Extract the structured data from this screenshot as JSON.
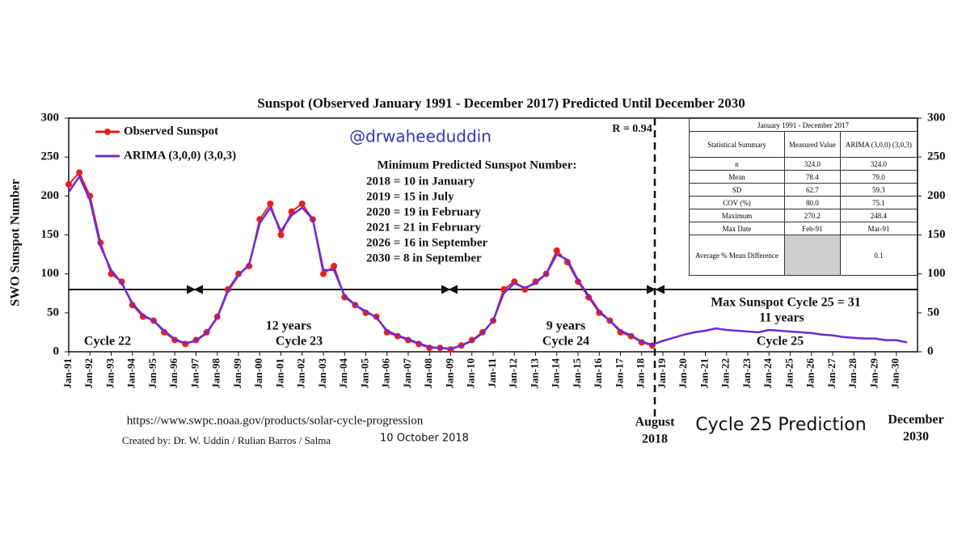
{
  "chart_data": {
    "type": "line",
    "title": "Sunspot (Observed January 1991 - December 2017) Predicted Until December 2030",
    "y_label": "SWO Sunspot Number",
    "legend": "upper left",
    "xlim": [
      1991,
      2031
    ],
    "ylim": [
      0,
      300
    ],
    "yticks": [
      0,
      50,
      100,
      150,
      200,
      250,
      300
    ],
    "xticks": [
      {
        "value": 1991,
        "label": "Jan-91"
      },
      {
        "value": 1992,
        "label": "Jan-92"
      },
      {
        "value": 1993,
        "label": "Jan-93"
      },
      {
        "value": 1994,
        "label": "Jan-94"
      },
      {
        "value": 1995,
        "label": "Jan-95"
      },
      {
        "value": 1996,
        "label": "Jan-96"
      },
      {
        "value": 1997,
        "label": "Jan-97"
      },
      {
        "value": 1998,
        "label": "Jan-98"
      },
      {
        "value": 1999,
        "label": "Jan-99"
      },
      {
        "value": 2000,
        "label": "Jan-00"
      },
      {
        "value": 2001,
        "label": "Jan-01"
      },
      {
        "value": 2002,
        "label": "Jan-02"
      },
      {
        "value": 2003,
        "label": "Jan-03"
      },
      {
        "value": 2004,
        "label": "Jan-04"
      },
      {
        "value": 2005,
        "label": "Jan-05"
      },
      {
        "value": 2006,
        "label": "Jan-06"
      },
      {
        "value": 2007,
        "label": "Jan-07"
      },
      {
        "value": 2008,
        "label": "Jan-08"
      },
      {
        "value": 2009,
        "label": "Jan-09"
      },
      {
        "value": 2010,
        "label": "Jan-10"
      },
      {
        "value": 2011,
        "label": "Jan-11"
      },
      {
        "value": 2012,
        "label": "Jan-12"
      },
      {
        "value": 2013,
        "label": "Jan-13"
      },
      {
        "value": 2014,
        "label": "Jan-14"
      },
      {
        "value": 2015,
        "label": "Jan-15"
      },
      {
        "value": 2016,
        "label": "Jan-16"
      },
      {
        "value": 2017,
        "label": "Jan-17"
      },
      {
        "value": 2018,
        "label": "Jan-18"
      },
      {
        "value": 2019,
        "label": "Jan-19"
      },
      {
        "value": 2020,
        "label": "Jan-20"
      },
      {
        "value": 2021,
        "label": "Jan-21"
      },
      {
        "value": 2022,
        "label": "Jan-22"
      },
      {
        "value": 2023,
        "label": "Jan-23"
      },
      {
        "value": 2024,
        "label": "Jan-24"
      },
      {
        "value": 2025,
        "label": "Jan-25"
      },
      {
        "value": 2026,
        "label": "Jan-26"
      },
      {
        "value": 2027,
        "label": "Jan-27"
      },
      {
        "value": 2028,
        "label": "Jan-28"
      },
      {
        "value": 2029,
        "label": "Jan-29"
      },
      {
        "value": 2030,
        "label": "Jan-30"
      }
    ],
    "series": [
      {
        "name": "Observed Sunspot",
        "color": "#e8201c",
        "markers": true,
        "x": [
          1991.0,
          1991.5,
          1992.0,
          1992.5,
          1993.0,
          1993.5,
          1994.0,
          1994.5,
          1995.0,
          1995.5,
          1996.0,
          1996.5,
          1997.0,
          1997.5,
          1998.0,
          1998.5,
          1999.0,
          1999.5,
          2000.0,
          2000.5,
          2001.0,
          2001.5,
          2002.0,
          2002.5,
          2003.0,
          2003.5,
          2004.0,
          2004.5,
          2005.0,
          2005.5,
          2006.0,
          2006.5,
          2007.0,
          2007.5,
          2008.0,
          2008.5,
          2009.0,
          2009.5,
          2010.0,
          2010.5,
          2011.0,
          2011.5,
          2012.0,
          2012.5,
          2013.0,
          2013.5,
          2014.0,
          2014.5,
          2015.0,
          2015.5,
          2016.0,
          2016.5,
          2017.0,
          2017.5,
          2018.0,
          2018.5
        ],
        "values": [
          215,
          230,
          200,
          140,
          100,
          90,
          60,
          45,
          40,
          25,
          15,
          10,
          15,
          25,
          45,
          80,
          100,
          110,
          170,
          190,
          150,
          180,
          190,
          170,
          100,
          110,
          70,
          60,
          50,
          45,
          25,
          20,
          15,
          10,
          5,
          5,
          3,
          8,
          15,
          25,
          40,
          80,
          90,
          80,
          90,
          100,
          130,
          115,
          90,
          70,
          50,
          40,
          25,
          20,
          12,
          8
        ]
      },
      {
        "name": "ARIMA (3,0,0) (3,0,3)",
        "color": "#6a2bd9",
        "markers": false,
        "x": [
          1991.0,
          1991.5,
          1992.0,
          1992.5,
          1993.0,
          1993.5,
          1994.0,
          1994.5,
          1995.0,
          1995.5,
          1996.0,
          1996.5,
          1997.0,
          1997.5,
          1998.0,
          1998.5,
          1999.0,
          1999.5,
          2000.0,
          2000.5,
          2001.0,
          2001.5,
          2002.0,
          2002.5,
          2003.0,
          2003.5,
          2004.0,
          2004.5,
          2005.0,
          2005.5,
          2006.0,
          2006.5,
          2007.0,
          2007.5,
          2008.0,
          2008.5,
          2009.0,
          2009.5,
          2010.0,
          2010.5,
          2011.0,
          2011.5,
          2012.0,
          2012.5,
          2013.0,
          2013.5,
          2014.0,
          2014.5,
          2015.0,
          2015.5,
          2016.0,
          2016.5,
          2017.0,
          2017.5,
          2018.0,
          2018.5,
          2019.0,
          2019.5,
          2020.0,
          2020.5,
          2021.0,
          2021.5,
          2022.0,
          2022.5,
          2023.0,
          2023.5,
          2024.0,
          2024.5,
          2025.0,
          2025.5,
          2026.0,
          2026.5,
          2027.0,
          2027.5,
          2028.0,
          2028.5,
          2029.0,
          2029.5,
          2030.0,
          2030.5
        ],
        "values": [
          205,
          225,
          195,
          135,
          105,
          88,
          62,
          47,
          40,
          27,
          16,
          11,
          14,
          24,
          44,
          78,
          98,
          112,
          165,
          185,
          155,
          175,
          185,
          170,
          105,
          105,
          72,
          60,
          52,
          44,
          27,
          21,
          16,
          11,
          6,
          5,
          4,
          8,
          14,
          24,
          40,
          75,
          88,
          82,
          88,
          100,
          125,
          118,
          92,
          72,
          52,
          40,
          27,
          21,
          13,
          9,
          14,
          18,
          22,
          25,
          27,
          30,
          28,
          27,
          26,
          25,
          28,
          27,
          26,
          25,
          24,
          22,
          21,
          19,
          18,
          17,
          17,
          15,
          15,
          12
        ]
      }
    ],
    "annotations": [
      "@drwaheeduddin",
      "R = 0.94",
      "Minimum Predicted Sunspot Number:",
      "2018 = 10 in January",
      "2019 = 15 in July",
      "2020 = 19 in February",
      "2021 = 21 in February",
      "2026 = 16 in September",
      "2030 = 8 in September",
      "Cycle 22",
      "12 years",
      "Cycle 23",
      "9 years",
      "Cycle 24",
      "Max Sunspot Cycle 25 = 31",
      "11 years",
      "Cycle 25",
      "https://www.swpc.noaa.gov/products/solar-cycle-progression",
      "Created by: Dr. W. Uddin / Rulian Barros / Salma",
      "10 October 2018",
      "August",
      "2018",
      "Cycle 25 Prediction",
      "December",
      "2030"
    ],
    "table": {
      "header": "January 1991 - December 2017",
      "columns": [
        "Statistical Summary",
        "Measured Value",
        "ARIMA (3,0,0) (3,0,3)"
      ],
      "rows": [
        [
          "n",
          "324.0",
          "324.0"
        ],
        [
          "Mean",
          "78.4",
          "79.0"
        ],
        [
          "SD",
          "62.7",
          "59.3"
        ],
        [
          "COV (%)",
          "80.0",
          "75.1"
        ],
        [
          "Maximum",
          "270.2",
          "248.4"
        ],
        [
          "Max Date",
          "Feb-91",
          "Mar-91"
        ],
        [
          "Average % Mean Difference",
          "",
          "0.1"
        ]
      ]
    }
  }
}
